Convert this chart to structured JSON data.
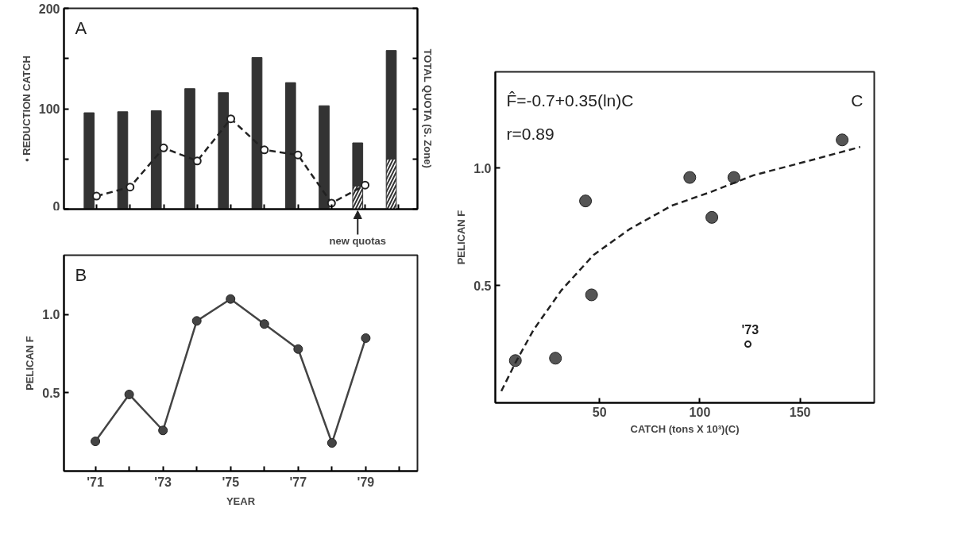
{
  "chart_data": [
    {
      "type": "bar",
      "stacked": true,
      "ylabel": "• REDUCTION CATCH",
      "y2label": "TOTAL QUOTA (S. Zone)",
      "annotations": [
        "A",
        "new quotas"
      ],
      "categories": [
        null,
        null,
        null,
        null,
        null,
        null,
        null,
        null,
        null,
        null
      ],
      "series": [
        {
          "color": "#333333",
          "values": [
            null,
            null,
            null,
            null,
            null,
            null,
            null,
            null,
            23,
            50
          ]
        },
        {
          "color": "#333333",
          "values": [
            96,
            97,
            98,
            120,
            116,
            151,
            126,
            103,
            43,
            108
          ]
        },
        {
          "type": "line",
          "color": "#222222",
          "line_style": "dashed",
          "marker": "circle",
          "values": [
            13,
            22,
            61,
            48,
            90,
            59,
            54,
            6,
            24,
            null
          ]
        }
      ],
      "ylim": [
        0,
        200
      ],
      "yticks": [
        0,
        {
          "value": 50,
          "label": null
        },
        100,
        {
          "value": 150,
          "label": null
        },
        200
      ],
      "tick_labels": "y",
      "grid": false
    },
    {
      "type": "line",
      "xlabel": "YEAR",
      "ylabel": "PELICAN F",
      "annotations": [
        "B"
      ],
      "marker": "circle",
      "line_style": "solid",
      "x": [
        1971,
        1972,
        1973,
        1974,
        1975,
        1976,
        1977,
        1978,
        1979
      ],
      "series": [
        {
          "color": "#444444",
          "values": [
            0.19,
            0.49,
            0.26,
            0.96,
            1.1,
            0.94,
            0.78,
            0.18,
            0.85
          ]
        }
      ],
      "xlim": [
        1970.07,
        1980.53
      ],
      "xticks": [
        {
          "value": 1971,
          "label": "'71"
        },
        {
          "value": 1972,
          "label": null
        },
        {
          "value": 1973,
          "label": "'73"
        },
        {
          "value": 1974,
          "label": null
        },
        {
          "value": 1975,
          "label": "'75"
        },
        {
          "value": 1976,
          "label": null
        },
        {
          "value": 1977,
          "label": "'77"
        },
        {
          "value": 1978,
          "label": null
        },
        {
          "value": 1979,
          "label": "'79"
        },
        {
          "value": 1980,
          "label": null
        }
      ],
      "ylim": [
        0,
        1.38
      ],
      "yticks": [
        0.5,
        {
          "value": 1.0,
          "label": "1.0"
        }
      ],
      "grid": false
    },
    {
      "type": "scatter",
      "xlabel": "CATCH (tons X 10³)(C)",
      "ylabel": "PELICAN F",
      "marker": "circle",
      "annotations": [
        "F̂=-0.7+0.35(ln)C",
        "r=0.89",
        "C",
        {
          "text": "'73",
          "x": 124,
          "y": 0.25
        }
      ],
      "series": [
        {
          "color": "#555555",
          "x": [
            8,
            28,
            43,
            46,
            95,
            106,
            117,
            171
          ],
          "values": [
            0.18,
            0.19,
            0.86,
            0.46,
            0.96,
            0.79,
            0.96,
            1.12
          ]
        },
        {
          "color": "#222222",
          "marker": "circle",
          "x": [
            124
          ],
          "values": [
            0.25
          ]
        },
        {
          "type": "line",
          "color": "#222222",
          "line_style": "dashed",
          "marker": "none",
          "x": [
            1,
            8,
            17,
            31,
            47,
            65,
            86,
            106,
            127,
            154,
            180
          ],
          "values": [
            0.05,
            0.17,
            0.31,
            0.48,
            0.63,
            0.74,
            0.84,
            0.9,
            0.97,
            1.03,
            1.09
          ]
        }
      ],
      "xlim": [
        -2,
        187
      ],
      "xticks": [
        50,
        100,
        150
      ],
      "ylim": [
        0,
        1.41
      ],
      "yticks": [
        0.5,
        {
          "value": 1.0,
          "label": "1.0"
        }
      ],
      "grid": false
    }
  ]
}
